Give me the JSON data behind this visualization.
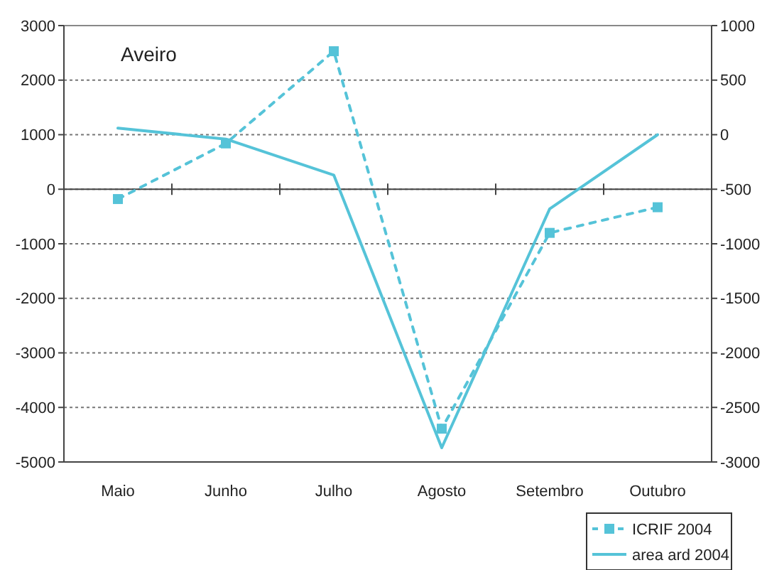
{
  "chart_data": {
    "type": "line",
    "title": "Aveiro",
    "categories": [
      "Maio",
      "Junho",
      "Julho",
      "Agosto",
      "Setembro",
      "Outubro"
    ],
    "series": [
      {
        "name": "ICRIF 2004",
        "color": "#55c3d8",
        "values": [
          -180,
          840,
          2530,
          -4390,
          -800,
          -330
        ],
        "line_style": "dashed",
        "marker": "square"
      },
      {
        "name": "area ard 2004",
        "color": "#55c3d8",
        "values": [
          60,
          -40,
          -370,
          -2870,
          -680,
          0
        ],
        "axis": "y2",
        "line_style": "solid",
        "marker": "none"
      }
    ],
    "ylim": [
      -5000,
      3000
    ],
    "yticks": [
      -5000,
      -4000,
      -3000,
      -2000,
      -1000,
      0,
      1000,
      2000,
      3000
    ],
    "y2lim": [
      -3000,
      1000
    ],
    "y2ticks": [
      -3000,
      -2500,
      -2000,
      -1500,
      -1000,
      -500,
      0,
      500,
      1000
    ],
    "grid": "y",
    "legend": "bottom right"
  }
}
